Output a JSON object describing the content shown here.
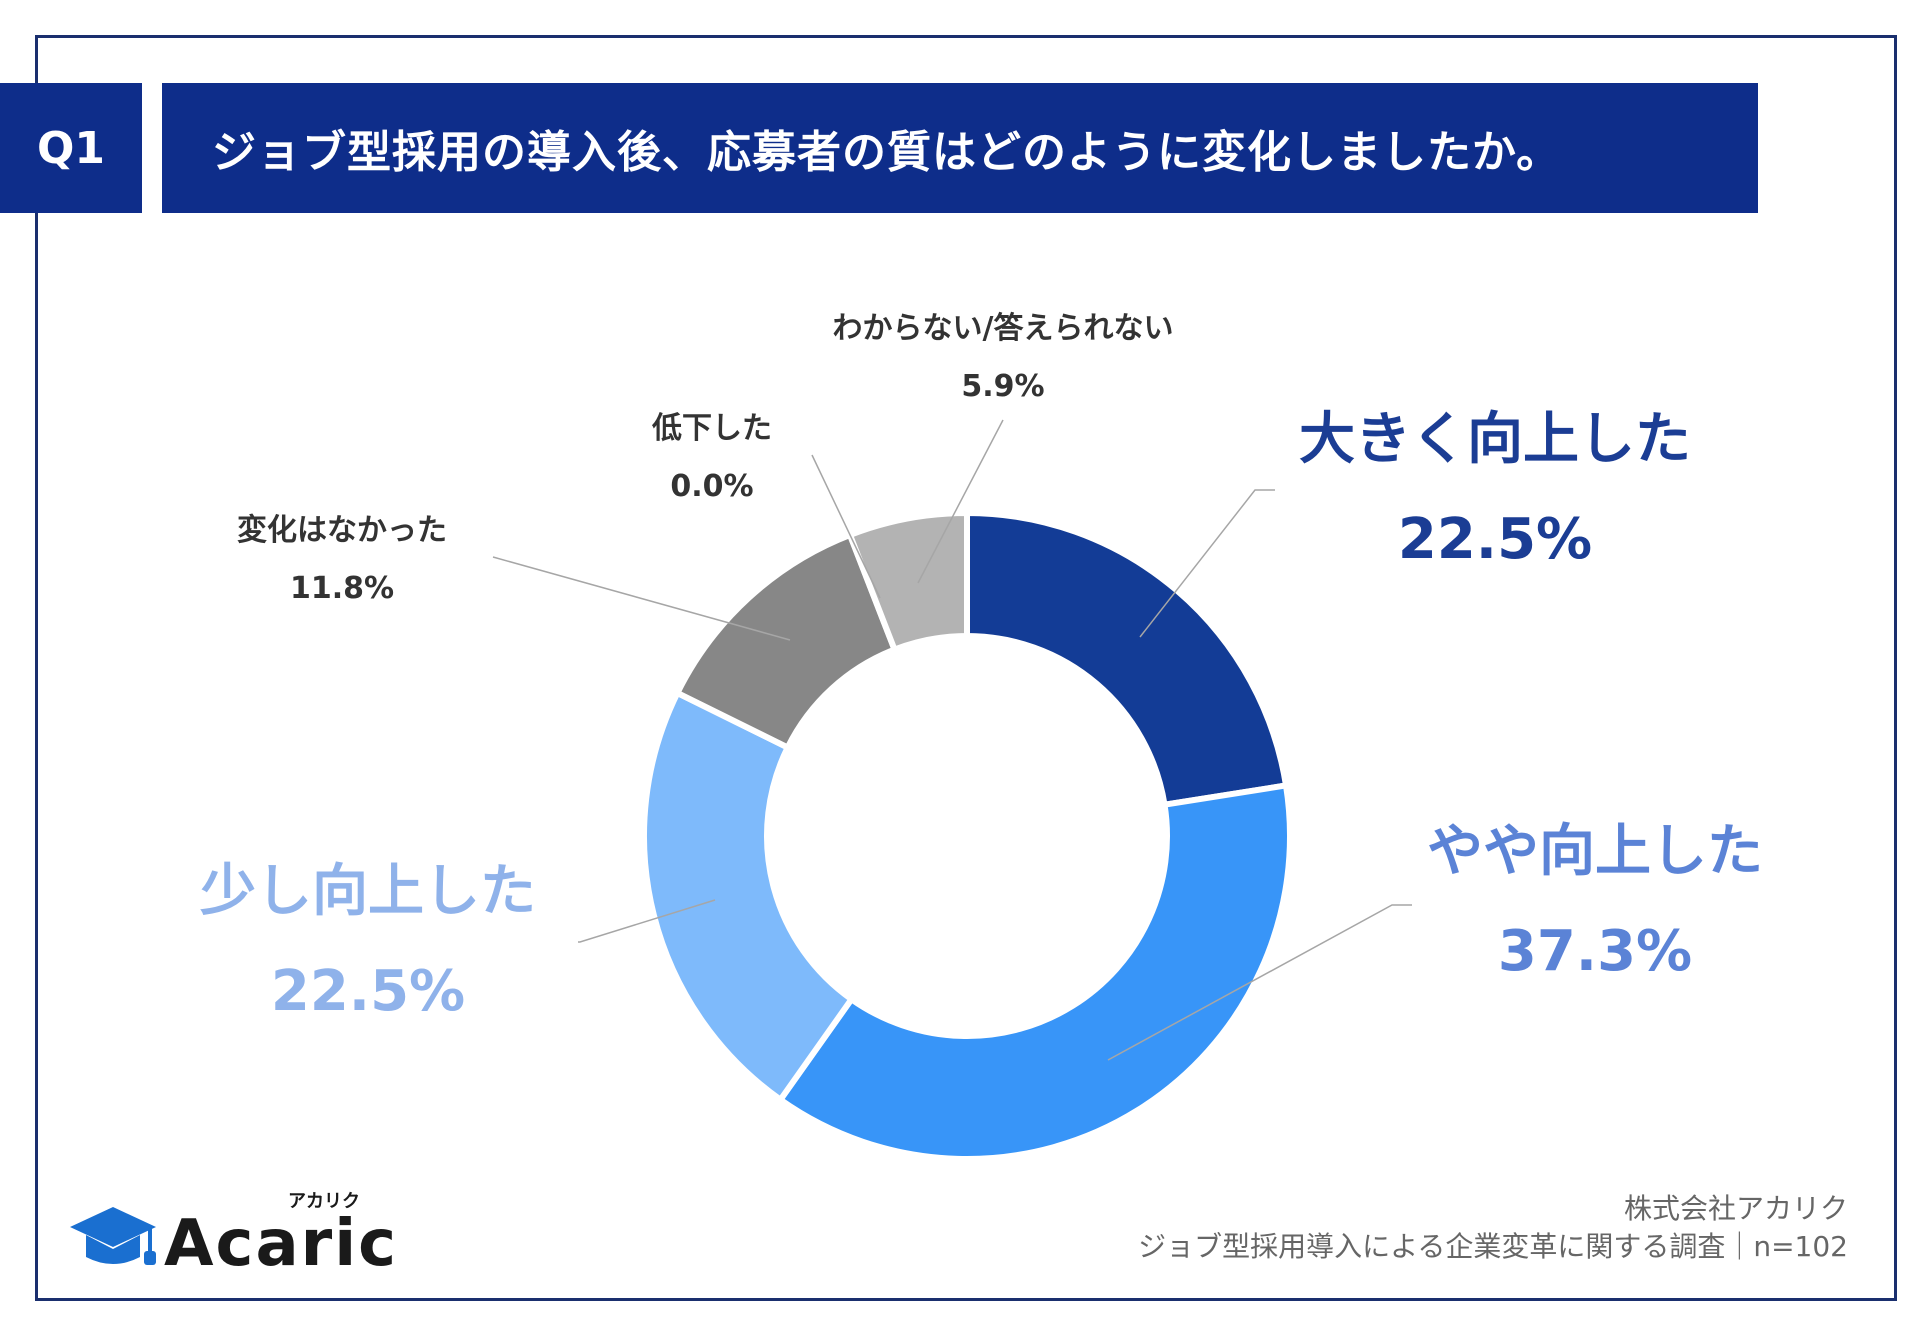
{
  "question": {
    "badge": "Q1",
    "title": "ジョブ型採用の導入後、応募者の質はどのように変化しましたか。"
  },
  "chart_data": {
    "type": "pie",
    "donut": true,
    "slices": [
      {
        "name": "大きく向上した",
        "value": 22.5,
        "value_label": "22.5%",
        "color": "#133c96",
        "label_color": "#1b3d94"
      },
      {
        "name": "やや向上した",
        "value": 37.3,
        "value_label": "37.3%",
        "color": "#3895f8",
        "label_color": "#5b83d6"
      },
      {
        "name": "少し向上した",
        "value": 22.5,
        "value_label": "22.5%",
        "color": "#7ebafb",
        "label_color": "#8fb2ea"
      },
      {
        "name": "変化はなかった",
        "value": 11.8,
        "value_label": "11.8%",
        "color": "#878787",
        "label_color": "#333333"
      },
      {
        "name": "低下した",
        "value": 0.0,
        "value_label": "0.0%",
        "color": "#555555",
        "label_color": "#333333"
      },
      {
        "name": "わからない/答えられない",
        "value": 5.9,
        "value_label": "5.9%",
        "color": "#b3b3b3",
        "label_color": "#333333"
      }
    ]
  },
  "brand": {
    "logo_text": "Acaric",
    "logo_kana": "アカリク"
  },
  "footer": {
    "company": "株式会社アカリク",
    "survey": "ジョブ型採用導入による企業変革に関する調査｜n=102"
  }
}
